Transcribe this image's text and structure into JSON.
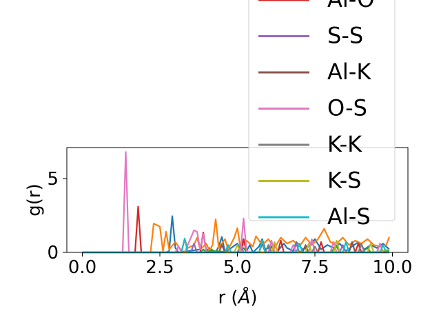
{
  "chart_data": {
    "type": "line",
    "xlabel": "r ($\\AA$)",
    "xlabel_parts": {
      "prefix": "r (",
      "symbol": "Å",
      "suffix": ")"
    },
    "ylabel": "g(r)",
    "xlim": [
      -0.5,
      10.5
    ],
    "ylim": [
      0,
      7.1
    ],
    "xticks": [
      0.0,
      2.5,
      5.0,
      7.5,
      10.0
    ],
    "xtick_labels": [
      "0.0",
      "2.5",
      "5.0",
      "7.5",
      "10.0"
    ],
    "yticks": [
      0,
      5
    ],
    "ytick_labels": [
      "0",
      "5"
    ],
    "grid": false,
    "legend_position": "top-right",
    "series": [
      {
        "name": "",
        "color": "#1f77b4",
        "x": [
          0,
          2.7,
          2.8,
          2.9,
          3.0,
          3.1,
          3.8,
          3.9,
          4.0,
          4.1,
          4.3,
          4.4,
          4.5,
          4.6,
          5.0,
          5.1,
          5.2,
          5.3,
          5.4,
          5.5,
          5.7,
          5.8,
          5.9,
          6.0,
          6.2,
          6.3,
          6.5,
          6.6,
          6.8,
          6.9,
          7.1,
          7.3,
          7.5,
          7.7,
          7.9,
          8.1,
          8.3,
          8.5,
          8.7,
          8.9,
          9.1,
          9.3,
          9.5,
          9.7,
          9.9
        ],
        "y": [
          0,
          0,
          0.1,
          2.45,
          0.3,
          0,
          0.2,
          1.3,
          0.1,
          0.3,
          0,
          0.4,
          1.05,
          0,
          0.6,
          0.2,
          0.9,
          0.1,
          0.5,
          0,
          0.4,
          0.9,
          0.2,
          0.3,
          0.5,
          0.1,
          0.6,
          0.3,
          0.1,
          0.7,
          0.2,
          0.4,
          0.9,
          0.2,
          0.5,
          0.3,
          0.6,
          0.1,
          0.4,
          0.7,
          0.2,
          0.5,
          0.3,
          0.6,
          0.2
        ]
      },
      {
        "name": "",
        "color": "#ff7f0e",
        "x": [
          0,
          2.1,
          2.2,
          2.3,
          2.5,
          2.6,
          2.7,
          2.8,
          3.0,
          3.2,
          3.3,
          3.4,
          3.6,
          3.7,
          3.8,
          4.0,
          4.1,
          4.2,
          4.3,
          4.4,
          4.6,
          4.7,
          4.8,
          4.9,
          5.0,
          5.1,
          5.3,
          5.5,
          5.6,
          5.8,
          6.0,
          6.2,
          6.4,
          6.6,
          6.8,
          7.0,
          7.2,
          7.4,
          7.6,
          7.8,
          8.0,
          8.2,
          8.4,
          8.6,
          8.8,
          9.0,
          9.2,
          9.4,
          9.6,
          9.8,
          9.9
        ],
        "y": [
          0,
          0,
          0,
          1.95,
          1.75,
          0.1,
          1.4,
          0.2,
          0.7,
          0.1,
          0.9,
          0.3,
          0.5,
          1.0,
          0.2,
          0.6,
          0.1,
          0.5,
          2.25,
          0.3,
          0.9,
          0.2,
          0.6,
          1.0,
          1.65,
          0.3,
          0.8,
          0.4,
          1.1,
          0.5,
          0.9,
          0.3,
          1.0,
          0.6,
          0.8,
          0.4,
          1.0,
          0.5,
          0.9,
          1.6,
          0.7,
          0.6,
          1.0,
          0.5,
          0.8,
          0.6,
          0.9,
          0.5,
          0.4,
          0.5,
          1.05
        ]
      },
      {
        "name": "",
        "color": "#2ca02c",
        "x": [
          0,
          3.8,
          3.9,
          4.0,
          4.1,
          5.0,
          5.2,
          5.3,
          6.0,
          6.1,
          6.2,
          7.0,
          7.2,
          7.3,
          8.0,
          8.2,
          8.3,
          9.0,
          9.2,
          9.3,
          9.9
        ],
        "y": [
          0,
          0,
          0.2,
          0,
          0.1,
          0,
          0.3,
          0,
          0,
          0.4,
          0,
          0,
          0.3,
          0,
          0,
          0.4,
          0,
          0,
          0.3,
          0,
          0.1
        ]
      },
      {
        "name": "Al-O",
        "color": "#d62728",
        "x": [
          0,
          1.7,
          1.8,
          1.9,
          2.0,
          3.8,
          3.9,
          4.0,
          4.1,
          5.1,
          5.2,
          5.3,
          6.3,
          6.4,
          6.5,
          7.6,
          7.7,
          7.8,
          8.8,
          8.9,
          9.0,
          9.9
        ],
        "y": [
          0,
          0,
          3.1,
          0,
          0,
          0,
          1.35,
          0,
          0,
          0,
          0.9,
          0,
          0,
          0.8,
          0,
          0,
          0.7,
          0,
          0,
          0.6,
          0,
          0
        ]
      },
      {
        "name": "S-S",
        "color": "#9467bd",
        "x": [
          0,
          3.5,
          3.6,
          3.7,
          5.0,
          5.1,
          5.2,
          6.8,
          6.9,
          7.0,
          8.3,
          8.4,
          8.5,
          9.5,
          9.6,
          9.7,
          9.9
        ],
        "y": [
          0,
          0,
          0.6,
          0,
          0,
          0.5,
          0,
          0,
          0.6,
          0,
          0,
          0.5,
          0,
          0,
          0.6,
          0,
          0
        ]
      },
      {
        "name": "Al-K",
        "color": "#8c564b",
        "x": [
          0,
          4.4,
          4.5,
          4.6,
          5.7,
          5.8,
          5.9,
          7.1,
          7.2,
          7.3,
          8.6,
          8.7,
          8.8,
          9.9
        ],
        "y": [
          0,
          0,
          0.5,
          0,
          0,
          0.6,
          0,
          0,
          0.5,
          0,
          0,
          0.7,
          0,
          0
        ]
      },
      {
        "name": "O-S",
        "color": "#e377c2",
        "x": [
          0,
          1.3,
          1.4,
          1.5,
          3.0,
          3.1,
          3.2,
          3.3,
          3.6,
          3.7,
          3.8,
          3.9,
          4.0,
          5.1,
          5.2,
          5.3,
          6.0,
          6.1,
          6.2,
          6.7,
          6.8,
          6.9,
          7.3,
          7.4,
          7.5,
          8.0,
          8.1,
          8.2,
          8.9,
          9.0,
          9.1,
          9.5,
          9.6,
          9.7,
          9.9
        ],
        "y": [
          0,
          0,
          6.8,
          0,
          0,
          0.4,
          0,
          0,
          1.5,
          1.4,
          0.2,
          1.25,
          0,
          0,
          2.3,
          0,
          0,
          0.8,
          0,
          0,
          0.5,
          0,
          0,
          0.9,
          0,
          0,
          0.7,
          0,
          0,
          0.5,
          0,
          0,
          0.6,
          0,
          0
        ]
      },
      {
        "name": "K-K",
        "color": "#7f7f7f",
        "x": [
          0,
          5.9,
          6.0,
          6.1,
          7.4,
          7.5,
          7.6,
          8.9,
          9.0,
          9.1,
          9.9
        ],
        "y": [
          0,
          0,
          0.5,
          0,
          0,
          0.4,
          0,
          0,
          0.6,
          0,
          0
        ]
      },
      {
        "name": "K-S",
        "color": "#bcbd22",
        "x": [
          0,
          4.9,
          5.0,
          5.1,
          6.1,
          6.2,
          6.3,
          7.2,
          7.3,
          7.4,
          8.1,
          8.2,
          8.3,
          9.2,
          9.3,
          9.4,
          9.9
        ],
        "y": [
          0,
          0,
          0.5,
          0,
          0,
          0.7,
          0,
          0,
          0.6,
          0,
          0,
          0.8,
          0,
          0,
          0.6,
          0,
          0.2
        ]
      },
      {
        "name": "Al-S",
        "color": "#17becf",
        "x": [
          0,
          3.2,
          3.3,
          3.4,
          4.6,
          4.7,
          4.8,
          5.7,
          5.8,
          5.9,
          6.9,
          7.0,
          7.1,
          8.4,
          8.5,
          8.6,
          9.6,
          9.7,
          9.8,
          9.9
        ],
        "y": [
          0,
          0,
          0.95,
          0,
          0,
          0.5,
          0,
          0,
          0.8,
          0,
          0,
          0.6,
          0,
          0,
          0.7,
          0,
          0,
          0.5,
          0,
          0
        ]
      }
    ]
  }
}
